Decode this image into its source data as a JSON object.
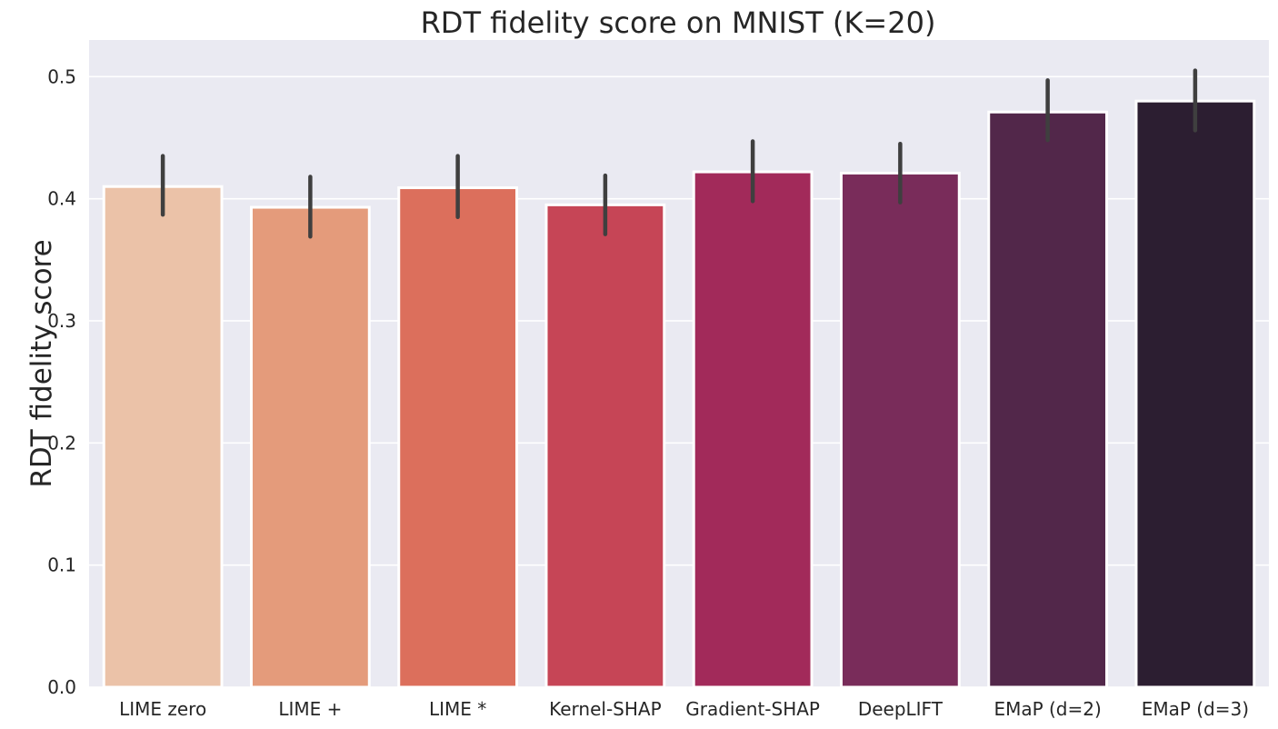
{
  "chart_data": {
    "type": "bar",
    "title": "RDT fidelity score on MNIST (K=20)",
    "xlabel": "",
    "ylabel": "RDT fidelity score",
    "categories": [
      "LIME zero",
      "LIME +",
      "LIME *",
      "Kernel-SHAP",
      "Gradient-SHAP",
      "DeepLIFT",
      "EMaP (d=2)",
      "EMaP (d=3)"
    ],
    "values": [
      0.41,
      0.393,
      0.409,
      0.395,
      0.422,
      0.421,
      0.471,
      0.48
    ],
    "error_low": [
      0.387,
      0.369,
      0.385,
      0.371,
      0.398,
      0.397,
      0.448,
      0.456
    ],
    "error_high": [
      0.435,
      0.418,
      0.435,
      0.419,
      0.447,
      0.445,
      0.497,
      0.505
    ],
    "bar_colors": [
      "#ebc2a8",
      "#e49b7b",
      "#dc6f5c",
      "#c64556",
      "#a22a5a",
      "#792c5a",
      "#52274a",
      "#2c1e31"
    ],
    "ylim": [
      0,
      0.53
    ],
    "yticks": [
      "0.0",
      "0.1",
      "0.2",
      "0.3",
      "0.4",
      "0.5"
    ],
    "grid": true,
    "background": "#eaeaf2"
  }
}
